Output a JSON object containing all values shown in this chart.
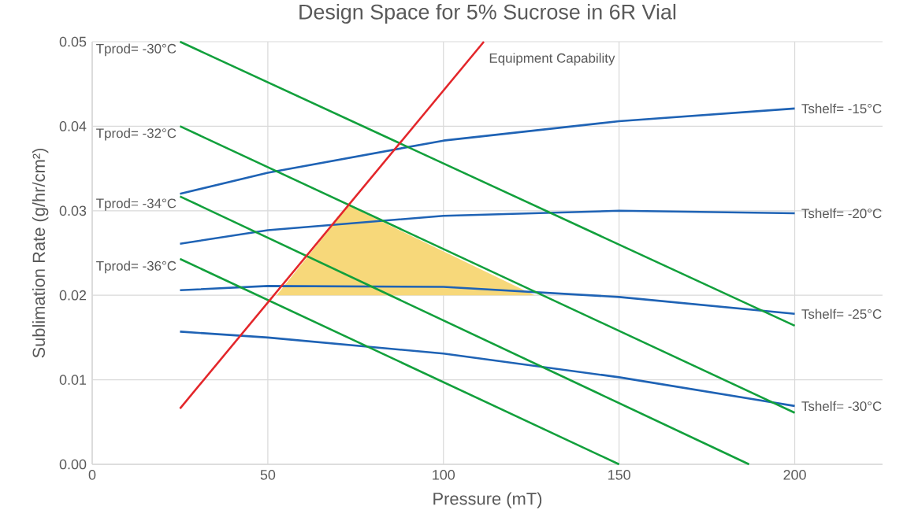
{
  "chart_data": {
    "type": "line",
    "title": "Design Space for 5% Sucrose in 6R Vial",
    "xlabel": "Pressure (mT)",
    "ylabel": "Sublimation Rate (g/hr/cm²)",
    "xlim": [
      0,
      225
    ],
    "xticks": [
      0,
      50,
      100,
      150,
      200
    ],
    "ylim": [
      0,
      0.05
    ],
    "yticks": [
      {
        "value": 0,
        "label": "0.00"
      },
      {
        "value": 0.01,
        "label": "0.01"
      },
      {
        "value": 0.02,
        "label": "0.02"
      },
      {
        "value": 0.03,
        "label": "0.03"
      },
      {
        "value": 0.04,
        "label": "0.04"
      },
      {
        "value": 0.05,
        "label": "0.05"
      }
    ],
    "grid": true,
    "series": [
      {
        "type": "area",
        "color": "#f7d87a",
        "x": [
          52.5,
          73,
          126,
          52.5
        ],
        "values": [
          0.02,
          0.0306,
          0.02,
          0.02
        ]
      },
      {
        "name": "Tshelf= -15°C",
        "color": "#1f63b5",
        "x": [
          25,
          50,
          100,
          150,
          200
        ],
        "values": [
          0.032,
          0.0345,
          0.0383,
          0.0406,
          0.0421
        ]
      },
      {
        "name": "Tshelf= -20°C",
        "color": "#1f63b5",
        "x": [
          25,
          50,
          100,
          150,
          200
        ],
        "values": [
          0.0261,
          0.0277,
          0.0294,
          0.03,
          0.0297
        ]
      },
      {
        "name": "Tshelf= -25°C",
        "color": "#1f63b5",
        "x": [
          25,
          50,
          100,
          150,
          200
        ],
        "values": [
          0.0206,
          0.0211,
          0.021,
          0.0198,
          0.0178
        ]
      },
      {
        "name": "Tshelf= -30°C",
        "color": "#1f63b5",
        "x": [
          25,
          50,
          100,
          150,
          200
        ],
        "values": [
          0.0157,
          0.015,
          0.0131,
          0.0103,
          0.0069
        ]
      },
      {
        "name": "Tprod= -30°C",
        "color": "#12a03c",
        "x": [
          25,
          200
        ],
        "values": [
          0.05,
          0.0164
        ]
      },
      {
        "name": "Tprod= -32°C",
        "color": "#12a03c",
        "x": [
          25,
          200
        ],
        "values": [
          0.04,
          0.0061
        ]
      },
      {
        "name": "Tprod= -34°C",
        "color": "#12a03c",
        "x": [
          25,
          187
        ],
        "values": [
          0.0317,
          0
        ]
      },
      {
        "name": "Tprod= -36°C",
        "color": "#12a03c",
        "x": [
          25,
          150
        ],
        "values": [
          0.0243,
          0
        ]
      },
      {
        "name": "Equipment Capability",
        "color": "#e3262a",
        "x": [
          25,
          111.5
        ],
        "values": [
          0.0066,
          0.05
        ]
      }
    ]
  }
}
